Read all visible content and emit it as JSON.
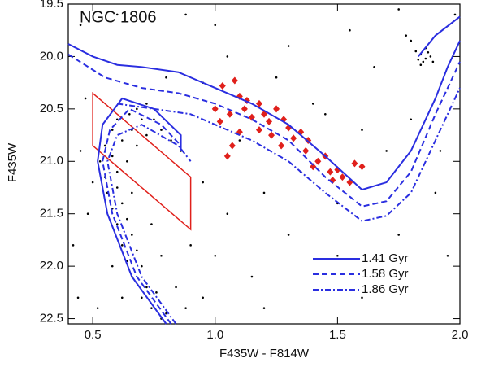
{
  "chart_data": {
    "type": "scatter",
    "title": "NGC 1806",
    "xlabel": "F435W - F814W",
    "ylabel": "F435W",
    "xlim": [
      0.4,
      2.0
    ],
    "ylim": [
      22.55,
      19.5
    ],
    "xticks": [
      {
        "value": 0.5,
        "label": "0.5"
      },
      {
        "value": 1,
        "label": "1.0"
      },
      {
        "value": 1.5,
        "label": "1.5"
      },
      {
        "value": 2,
        "label": "2.0"
      }
    ],
    "yticks": [
      19.5,
      {
        "value": 20,
        "label": "20.0"
      },
      20.5,
      {
        "value": 21,
        "label": "21.0"
      },
      21.5,
      {
        "value": 22,
        "label": "22.0"
      },
      22.5
    ],
    "legend": "lower right",
    "series": [
      {
        "color": "#000000",
        "marker": "dot",
        "x": [
          0.78,
          0.74,
          0.8,
          0.7,
          0.72,
          0.76,
          0.66,
          0.7,
          0.64,
          0.68,
          0.62,
          0.66,
          0.6,
          0.64,
          0.58,
          0.62,
          0.56,
          0.6,
          0.66,
          0.55,
          0.6,
          0.53,
          0.58,
          0.64,
          0.55,
          0.62,
          0.68,
          0.58,
          0.66,
          0.72,
          0.6,
          0.7,
          0.78,
          0.65,
          0.75,
          0.82,
          0.68,
          0.72,
          0.86,
          0.5,
          0.48,
          0.74,
          0.78,
          0.84,
          0.88,
          0.62,
          0.58,
          0.9,
          0.45,
          0.52,
          1.84,
          1.86,
          1.85,
          1.87,
          1.83,
          1.88,
          1.82,
          1.86,
          1.84,
          1.89,
          1.8,
          1.78,
          0.45,
          0.6,
          1.0,
          1.3,
          1.55,
          1.65,
          1.25,
          1.05,
          0.95,
          1.4,
          1.6,
          1.7,
          1.35,
          1.2,
          1.05,
          0.95,
          1.0,
          1.15,
          1.3,
          1.5,
          1.75,
          1.9,
          1.95,
          1.6,
          1.2,
          0.95,
          0.42,
          0.44,
          0.47,
          0.8,
          1.1,
          1.45,
          1.8,
          1.92,
          1.5,
          0.88,
          1.75,
          1.98
        ],
        "y": [
          22.5,
          22.4,
          22.45,
          22.3,
          22.2,
          22.25,
          22.1,
          22.0,
          21.95,
          21.85,
          21.8,
          21.7,
          21.6,
          21.55,
          21.45,
          21.4,
          21.3,
          21.25,
          21.3,
          21.15,
          21.1,
          21.0,
          20.95,
          21.0,
          20.85,
          20.8,
          20.85,
          20.7,
          20.7,
          20.75,
          20.6,
          20.6,
          20.7,
          20.55,
          20.6,
          20.8,
          20.5,
          20.45,
          20.9,
          21.2,
          21.5,
          21.6,
          21.9,
          22.2,
          22.4,
          22.3,
          22.0,
          21.8,
          20.9,
          22.4,
          19.98,
          20.02,
          20.05,
          19.96,
          20.03,
          20.0,
          19.95,
          19.92,
          20.08,
          20.05,
          19.85,
          19.8,
          19.7,
          19.6,
          19.7,
          19.9,
          19.75,
          20.1,
          20.2,
          20.0,
          20.25,
          20.45,
          20.7,
          20.9,
          21.1,
          21.3,
          21.5,
          21.2,
          21.9,
          22.1,
          21.7,
          21.9,
          21.7,
          21.3,
          21.9,
          22.3,
          22.4,
          22.3,
          21.8,
          22.3,
          20.4,
          20.2,
          20.8,
          20.55,
          20.6,
          20.9,
          21.4,
          19.6,
          19.55,
          19.6
        ]
      },
      {
        "color": "#e0201b",
        "marker": "diamond",
        "x": [
          1.03,
          1.08,
          1.1,
          1.13,
          1.18,
          1.0,
          1.06,
          1.12,
          1.15,
          1.2,
          1.22,
          1.25,
          1.28,
          1.18,
          1.23,
          1.3,
          1.32,
          1.27,
          1.35,
          1.38,
          1.02,
          1.1,
          1.07,
          1.05,
          1.45,
          1.42,
          1.47,
          1.5,
          1.52,
          1.48,
          1.55,
          1.57,
          1.6,
          1.4,
          1.37
        ],
        "y": [
          20.28,
          20.23,
          20.38,
          20.42,
          20.45,
          20.5,
          20.55,
          20.5,
          20.58,
          20.55,
          20.62,
          20.5,
          20.6,
          20.7,
          20.75,
          20.68,
          20.78,
          20.85,
          20.72,
          20.8,
          20.62,
          20.72,
          20.85,
          20.95,
          20.95,
          21.0,
          21.1,
          21.08,
          21.15,
          21.18,
          21.2,
          21.02,
          21.05,
          21.05,
          20.9
        ]
      },
      {
        "name": "1.41 Gyr",
        "color": "#2a2ee0",
        "dash": "solid",
        "x": [
          0.8,
          0.66,
          0.56,
          0.52,
          0.54,
          0.62,
          0.75,
          0.86,
          0.86,
          null,
          0.4,
          0.5,
          0.6,
          0.7,
          0.85,
          1.0,
          1.15,
          1.3,
          1.45,
          1.6,
          1.7,
          1.8,
          1.9,
          1.95,
          2.0,
          null,
          1.83,
          1.9,
          2.0
        ],
        "y": [
          22.55,
          22.1,
          21.5,
          21.0,
          20.65,
          20.4,
          20.5,
          20.75,
          20.9,
          null,
          19.88,
          20.0,
          20.08,
          20.1,
          20.15,
          20.3,
          20.45,
          20.65,
          20.95,
          21.27,
          21.2,
          20.9,
          20.4,
          20.1,
          19.85,
          null,
          20.0,
          19.8,
          19.62
        ]
      },
      {
        "name": "1.58 Gyr",
        "color": "#2a2ee0",
        "dash": "dashed",
        "x": [
          0.82,
          0.68,
          0.58,
          0.54,
          0.57,
          0.65,
          0.78,
          0.86,
          null,
          0.4,
          0.55,
          0.7,
          0.85,
          1.0,
          1.15,
          1.3,
          1.45,
          1.6,
          1.7,
          1.8,
          1.9,
          1.97,
          2.0
        ],
        "y": [
          22.55,
          22.1,
          21.5,
          21.0,
          20.7,
          20.5,
          20.65,
          20.85,
          null,
          19.98,
          20.2,
          20.3,
          20.35,
          20.45,
          20.6,
          20.8,
          21.15,
          21.43,
          21.38,
          21.1,
          20.55,
          20.2,
          20.05
        ]
      },
      {
        "name": "1.86 Gyr",
        "color": "#2a2ee0",
        "dash": "dashdot",
        "x": [
          0.84,
          0.7,
          0.6,
          0.56,
          0.6,
          0.7,
          0.85,
          0.9,
          null,
          0.6,
          0.75,
          0.9,
          1.0,
          1.15,
          1.3,
          1.45,
          1.6,
          1.7,
          1.8,
          1.9,
          2.0
        ],
        "y": [
          22.55,
          22.1,
          21.5,
          21.0,
          20.75,
          20.65,
          20.85,
          21.0,
          null,
          20.45,
          20.5,
          20.55,
          20.65,
          20.8,
          21.0,
          21.3,
          21.57,
          21.52,
          21.3,
          20.8,
          20.3
        ]
      }
    ],
    "regions": [
      {
        "color": "#e0201b",
        "x": [
          0.5,
          0.9,
          0.9,
          0.5
        ],
        "y": [
          20.35,
          21.15,
          21.65,
          20.85
        ]
      }
    ]
  }
}
